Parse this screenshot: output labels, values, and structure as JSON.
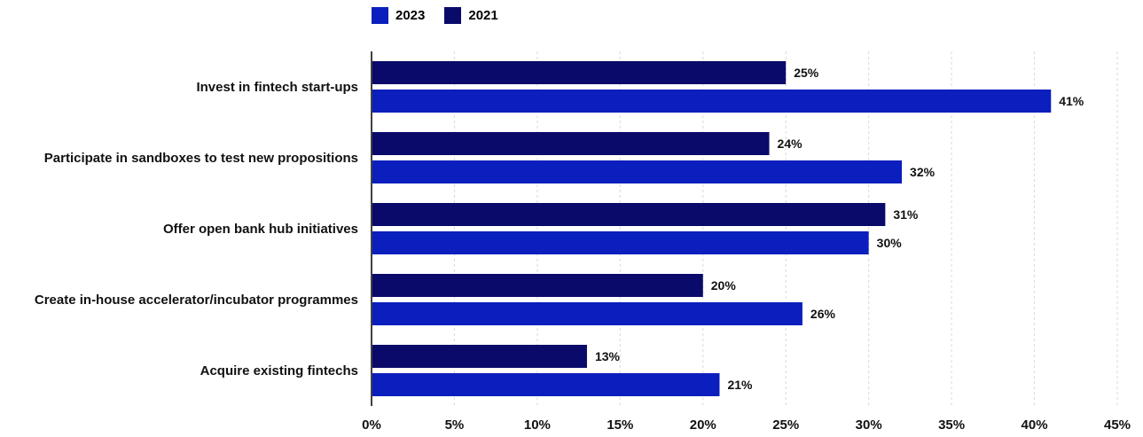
{
  "chart_data": {
    "type": "bar",
    "orientation": "horizontal",
    "categories": [
      "Invest in fintech start-ups",
      "Participate in sandboxes to test new propositions",
      "Offer open bank hub initiatives",
      "Create in-house accelerator/incubator programmes",
      "Acquire existing fintechs"
    ],
    "series": [
      {
        "name": "2021",
        "color": "#0a0a6b",
        "values": [
          25,
          24,
          31,
          20,
          13
        ],
        "labels": [
          "25%",
          "24%",
          "31%",
          "20%",
          "13%"
        ]
      },
      {
        "name": "2023",
        "color": "#0a1fbd",
        "values": [
          41,
          32,
          30,
          26,
          21
        ],
        "labels": [
          "41%",
          "32%",
          "30%",
          "26%",
          "21%"
        ]
      }
    ],
    "legend": [
      {
        "name": "2023",
        "color": "#0a1fbd"
      },
      {
        "name": "2021",
        "color": "#0a0a6b"
      }
    ],
    "legend_position": "top-left",
    "xlim": [
      0,
      45
    ],
    "xticks": [
      0,
      5,
      10,
      15,
      20,
      25,
      30,
      35,
      40,
      45
    ],
    "xtick_labels": [
      "0%",
      "5%",
      "10%",
      "15%",
      "20%",
      "25%",
      "30%",
      "35%",
      "40%",
      "45%"
    ],
    "grid": "vertical dashed",
    "title": "",
    "xlabel": "",
    "ylabel": ""
  }
}
